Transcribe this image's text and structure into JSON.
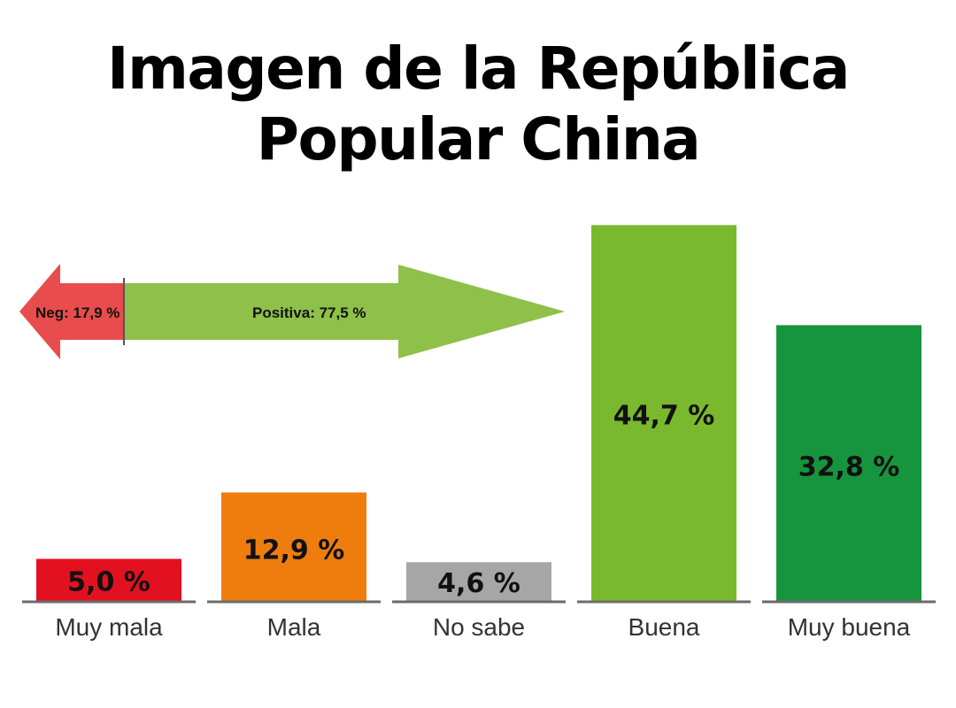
{
  "chart_data": {
    "type": "bar",
    "title_lines": [
      "Imagen de la República",
      "Popular China"
    ],
    "categories": [
      "Muy mala",
      "Mala",
      "No sabe",
      "Buena",
      "Muy buena"
    ],
    "values": [
      5.0,
      12.9,
      4.6,
      44.7,
      32.8
    ],
    "value_labels": [
      "5,0 %",
      "12,9 %",
      "4,6 %",
      "44,7 %",
      "32,8 %"
    ],
    "colors": [
      "#e3101f",
      "#ef7d0e",
      "#a6a6a6",
      "#7ab82e",
      "#16943e"
    ],
    "annotations": {
      "negative": {
        "label": "Neg: 17,9 %",
        "value": 17.9,
        "color": "#e84c4c"
      },
      "positive": {
        "label": "Positiva: 77,5 %",
        "value": 77.5,
        "color": "#8ec04a"
      }
    }
  }
}
